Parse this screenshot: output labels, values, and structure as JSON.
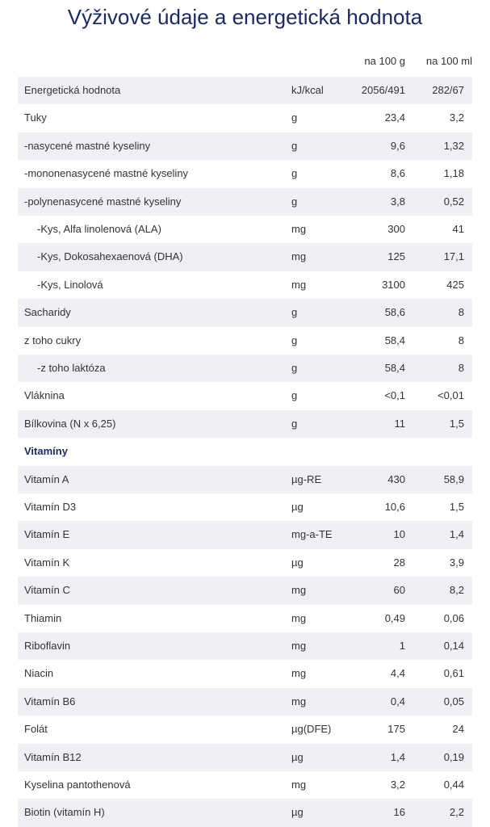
{
  "header": {
    "title": "Výživové údaje a energetická hodnota"
  },
  "table": {
    "columns": [
      "na 100 g",
      "na 100 ml"
    ],
    "rows": [
      [
        "Energetická hodnota",
        "kJ/kcal",
        "2056/491",
        "282/67"
      ],
      [
        "Tuky",
        "g",
        "23,4",
        "3,2"
      ],
      [
        "-nasycené mastné kyseliny",
        "g",
        "9,6",
        "1,32"
      ],
      [
        "-mononenasycené mastné kyseliny",
        "g",
        "8,6",
        "1,18"
      ],
      [
        "-polynenasycené mastné kyseliny",
        "g",
        "3,8",
        "0,52"
      ],
      [
        "-Kys, Alfa linolenová (ALA)",
        "mg",
        "300",
        "41"
      ],
      [
        "-Kys, Dokosahexaenová (DHA)",
        "mg",
        "125",
        "17,1"
      ],
      [
        "-Kys, Linolová",
        "mg",
        "3100",
        "425"
      ],
      [
        "Sacharidy",
        "g",
        "58,6",
        "8"
      ],
      [
        "z toho cukry",
        "g",
        "58,4",
        "8"
      ],
      [
        "-z toho laktóza",
        "g",
        "58,4",
        "8"
      ],
      [
        "Vláknina",
        "g",
        "<0,1",
        "<0,01"
      ],
      [
        "Bílkovina (N x 6,25)",
        "g",
        "11",
        "1,5"
      ],
      [
        "Vitamíny"
      ],
      [
        "Vitamín A",
        "µg-RE",
        "430",
        "58,9"
      ],
      [
        "Vitamín D3",
        "µg",
        "10,6",
        "1,5"
      ],
      [
        "Vitamín E",
        "mg-a-TE",
        "10",
        "1,4"
      ],
      [
        "Vitamín K",
        "µg",
        "28",
        "3,9"
      ],
      [
        "Vitamín C",
        "mg",
        "60",
        "8,2"
      ],
      [
        "Thiamin",
        "mg",
        "0,49",
        "0,06"
      ],
      [
        "Riboflavin",
        "mg",
        "1",
        "0,14"
      ],
      [
        "Niacin",
        "mg",
        "4,4",
        "0,61"
      ],
      [
        "Vitamín B6",
        "mg",
        "0,4",
        "0,05"
      ],
      [
        "Folát",
        "µg(DFE)",
        "175",
        "24"
      ],
      [
        "Vitamín B12",
        "µg",
        "1,4",
        "0,19"
      ],
      [
        "Kyselina pantothenová",
        "mg",
        "3,2",
        "0,44"
      ],
      [
        "Biotin (vitamín H)",
        "µg",
        "16",
        "2,2"
      ]
    ]
  }
}
